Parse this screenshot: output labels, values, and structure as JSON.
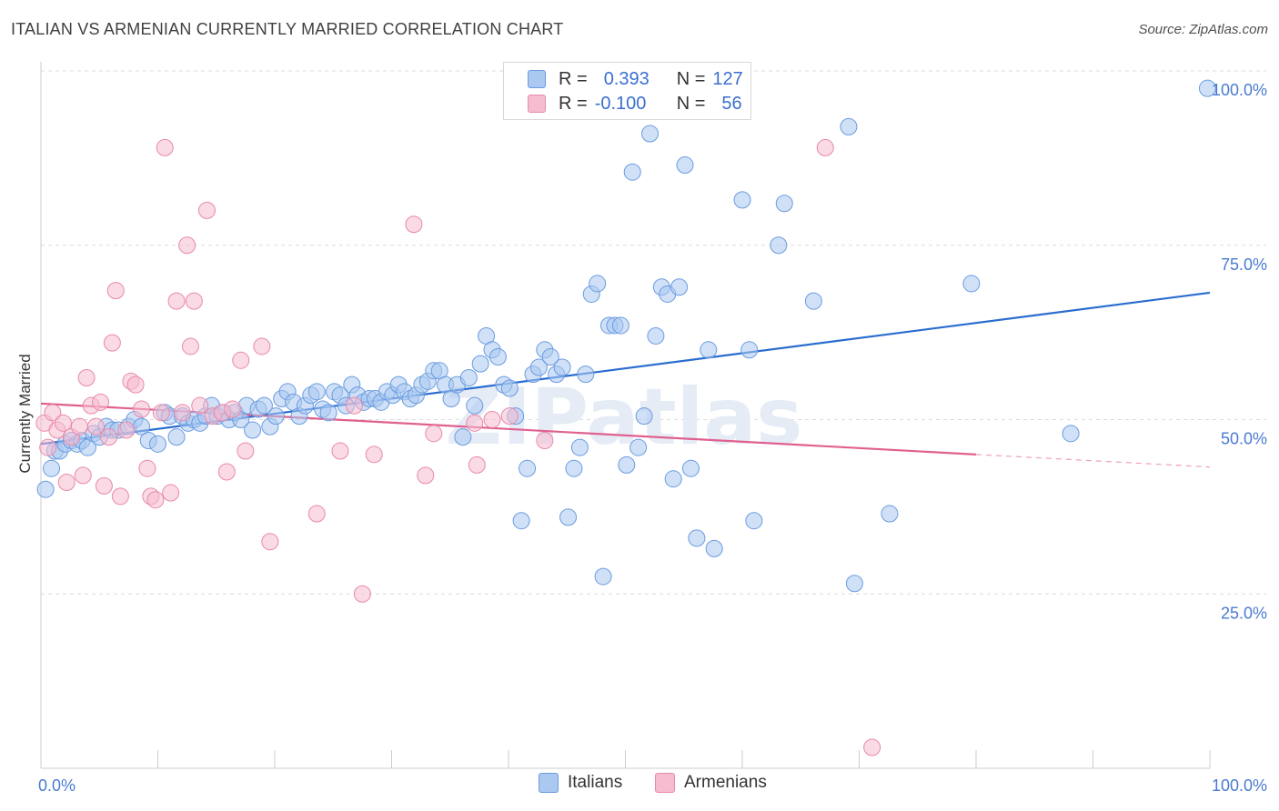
{
  "title": "ITALIAN VS ARMENIAN CURRENTLY MARRIED CORRELATION CHART",
  "source": "Source: ZipAtlas.com",
  "watermark": "ZIPatlas",
  "legend": {
    "rows": [
      {
        "r_label": "R =",
        "r_value": "0.393",
        "n_label": "N =",
        "n_value": "127",
        "color": "#aac8f0",
        "border": "#6a9be0"
      },
      {
        "r_label": "R =",
        "r_value": "-0.100",
        "n_label": "N =",
        "n_value": "56",
        "color": "#f6bcd0",
        "border": "#e88aaa"
      }
    ]
  },
  "bottom_legend": [
    {
      "label": "Italians",
      "color": "#aac8f0",
      "border": "#6a9be0"
    },
    {
      "label": "Armenians",
      "color": "#f6bcd0",
      "border": "#e88aaa"
    }
  ],
  "chart_data": {
    "type": "scatter",
    "title": "ITALIAN VS ARMENIAN CURRENTLY MARRIED CORRELATION CHART",
    "xlabel": "",
    "ylabel": "Currently Married",
    "xlim": [
      0,
      100
    ],
    "ylim": [
      0,
      100
    ],
    "x_tick_labels": [
      "0.0%",
      "100.0%"
    ],
    "y_ticks": [
      25,
      50,
      75,
      100
    ],
    "y_tick_labels": [
      "25.0%",
      "50.0%",
      "75.0%",
      "100.0%"
    ],
    "grid": "horizontal dashed",
    "series": [
      {
        "name": "Italians",
        "color": "#6a9be0",
        "fill": "#aac8f0",
        "trend": {
          "x": [
            0,
            100
          ],
          "y": [
            46.5,
            68.2
          ],
          "color": "#2a6dd0"
        },
        "points": [
          [
            0.4,
            40
          ],
          [
            0.9,
            43
          ],
          [
            1.2,
            45.5
          ],
          [
            1.6,
            45.5
          ],
          [
            2.1,
            46.5
          ],
          [
            2.6,
            47
          ],
          [
            3.1,
            46.5
          ],
          [
            3.5,
            47
          ],
          [
            4,
            46
          ],
          [
            4.5,
            48
          ],
          [
            5,
            47.5
          ],
          [
            5.6,
            49
          ],
          [
            6.1,
            48.5
          ],
          [
            6.6,
            48.5
          ],
          [
            7.5,
            49
          ],
          [
            8,
            50
          ],
          [
            8.6,
            49
          ],
          [
            9.2,
            47
          ],
          [
            10,
            46.5
          ],
          [
            10.6,
            51
          ],
          [
            11,
            50.5
          ],
          [
            11.6,
            47.5
          ],
          [
            12.1,
            50.5
          ],
          [
            12.6,
            49.5
          ],
          [
            13.1,
            50
          ],
          [
            13.6,
            49.5
          ],
          [
            14.1,
            50.5
          ],
          [
            14.6,
            52
          ],
          [
            15.1,
            50.5
          ],
          [
            15.6,
            51
          ],
          [
            16.1,
            50
          ],
          [
            16.6,
            51
          ],
          [
            17.1,
            50
          ],
          [
            17.6,
            52
          ],
          [
            18.1,
            48.5
          ],
          [
            18.6,
            51.5
          ],
          [
            19.1,
            52
          ],
          [
            19.6,
            49
          ],
          [
            20.1,
            50.5
          ],
          [
            20.6,
            53
          ],
          [
            21.1,
            54
          ],
          [
            21.6,
            52.5
          ],
          [
            22.1,
            50.5
          ],
          [
            22.6,
            52
          ],
          [
            23.1,
            53.5
          ],
          [
            23.6,
            54
          ],
          [
            24.1,
            51.5
          ],
          [
            24.6,
            51
          ],
          [
            25.1,
            54
          ],
          [
            25.6,
            53.5
          ],
          [
            26.1,
            52
          ],
          [
            26.6,
            55
          ],
          [
            27.1,
            53.5
          ],
          [
            27.6,
            52.5
          ],
          [
            28.1,
            53
          ],
          [
            28.6,
            53
          ],
          [
            29.1,
            52.5
          ],
          [
            29.6,
            54
          ],
          [
            30.1,
            53.5
          ],
          [
            30.6,
            55
          ],
          [
            31.1,
            54
          ],
          [
            31.6,
            53
          ],
          [
            32.1,
            53.5
          ],
          [
            32.6,
            55
          ],
          [
            33.1,
            55.5
          ],
          [
            33.6,
            57
          ],
          [
            34.1,
            57
          ],
          [
            34.6,
            55
          ],
          [
            35.1,
            53
          ],
          [
            35.6,
            55
          ],
          [
            36.1,
            47.5
          ],
          [
            36.6,
            56
          ],
          [
            37.1,
            52
          ],
          [
            37.6,
            58
          ],
          [
            38.1,
            62
          ],
          [
            38.6,
            60
          ],
          [
            39.1,
            59
          ],
          [
            39.6,
            55
          ],
          [
            40.1,
            54.5
          ],
          [
            40.6,
            50.5
          ],
          [
            41.1,
            35.5
          ],
          [
            41.6,
            43
          ],
          [
            42.1,
            56.5
          ],
          [
            42.6,
            57.5
          ],
          [
            43.1,
            60
          ],
          [
            43.6,
            59
          ],
          [
            44.1,
            56.5
          ],
          [
            44.6,
            57.5
          ],
          [
            45.1,
            36
          ],
          [
            45.6,
            43
          ],
          [
            46.1,
            46
          ],
          [
            46.6,
            56.5
          ],
          [
            47.1,
            68
          ],
          [
            47.6,
            69.5
          ],
          [
            48.1,
            27.5
          ],
          [
            48.6,
            63.5
          ],
          [
            49.1,
            63.5
          ],
          [
            49.6,
            63.5
          ],
          [
            50.1,
            43.5
          ],
          [
            50.6,
            85.5
          ],
          [
            51.1,
            46
          ],
          [
            51.6,
            50.5
          ],
          [
            52.1,
            91
          ],
          [
            52.6,
            62
          ],
          [
            53.1,
            69
          ],
          [
            53.6,
            68
          ],
          [
            54.1,
            41.5
          ],
          [
            54.6,
            69
          ],
          [
            55.1,
            86.5
          ],
          [
            55.6,
            43
          ],
          [
            56.1,
            33
          ],
          [
            57.1,
            60
          ],
          [
            57.6,
            31.5
          ],
          [
            60,
            81.5
          ],
          [
            60.6,
            60
          ],
          [
            61,
            35.5
          ],
          [
            63.6,
            81
          ],
          [
            63.1,
            75
          ],
          [
            66.1,
            67
          ],
          [
            69.1,
            92
          ],
          [
            69.6,
            26.5
          ],
          [
            72.6,
            36.5
          ],
          [
            79.6,
            69.5
          ],
          [
            88.1,
            48
          ],
          [
            99.8,
            97.5
          ]
        ]
      },
      {
        "name": "Armenians",
        "color": "#e88aaa",
        "fill": "#f6bcd0",
        "trend": {
          "x": [
            0,
            80
          ],
          "y": [
            52.3,
            45.0
          ],
          "color": "#e0608f"
        },
        "trend_dashed": {
          "x": [
            80,
            100
          ],
          "y": [
            45.0,
            43.2
          ]
        },
        "points": [
          [
            0.3,
            49.5
          ],
          [
            0.6,
            46
          ],
          [
            1,
            51
          ],
          [
            1.4,
            48.5
          ],
          [
            1.9,
            49.5
          ],
          [
            2.2,
            41
          ],
          [
            2.6,
            47.5
          ],
          [
            3.3,
            49
          ],
          [
            3.6,
            42
          ],
          [
            3.9,
            56
          ],
          [
            4.3,
            52
          ],
          [
            4.7,
            49
          ],
          [
            5.1,
            52.5
          ],
          [
            5.4,
            40.5
          ],
          [
            5.8,
            47.5
          ],
          [
            6.1,
            61
          ],
          [
            6.4,
            68.5
          ],
          [
            6.8,
            39
          ],
          [
            7.3,
            48.5
          ],
          [
            7.7,
            55.5
          ],
          [
            8.1,
            55
          ],
          [
            8.6,
            51.5
          ],
          [
            9.1,
            43
          ],
          [
            9.4,
            39
          ],
          [
            9.8,
            38.5
          ],
          [
            10.3,
            51
          ],
          [
            10.6,
            89
          ],
          [
            11.1,
            39.5
          ],
          [
            11.6,
            67
          ],
          [
            12.1,
            51
          ],
          [
            12.5,
            75
          ],
          [
            12.8,
            60.5
          ],
          [
            13.1,
            67
          ],
          [
            13.6,
            52
          ],
          [
            14.2,
            80
          ],
          [
            14.7,
            50.5
          ],
          [
            15.5,
            51
          ],
          [
            15.9,
            42.5
          ],
          [
            16.4,
            51.5
          ],
          [
            17.1,
            58.5
          ],
          [
            17.5,
            45.5
          ],
          [
            18.9,
            60.5
          ],
          [
            19.6,
            32.5
          ],
          [
            23.6,
            36.5
          ],
          [
            25.6,
            45.5
          ],
          [
            26.8,
            52
          ],
          [
            27.5,
            25
          ],
          [
            28.5,
            45
          ],
          [
            31.9,
            78
          ],
          [
            32.9,
            42
          ],
          [
            33.6,
            48
          ],
          [
            37.1,
            49.5
          ],
          [
            37.3,
            43.5
          ],
          [
            38.6,
            50
          ],
          [
            40.1,
            50.5
          ],
          [
            43.1,
            47
          ],
          [
            67.1,
            89
          ],
          [
            71.1,
            3
          ]
        ]
      }
    ]
  }
}
